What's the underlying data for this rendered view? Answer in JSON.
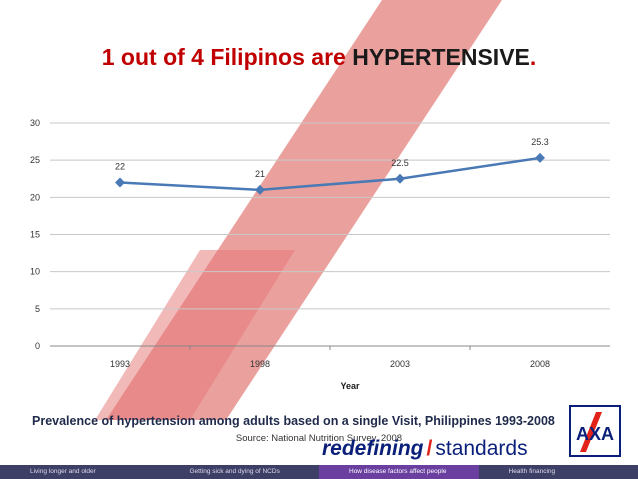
{
  "slide": {
    "title_part1": "1 out of 4 Filipinos are ",
    "title_part2": "HYPERTENSIVE",
    "title_period": ".",
    "caption": "Prevalence of hypertension among adults based on a single Visit, Philippines 1993-2008",
    "source": "Source: National Nutrition Survey, 2008",
    "brand": {
      "word1": "redefining",
      "slash": "/",
      "word2": "standards"
    },
    "logo_text": "AXA",
    "colors": {
      "title_red": "#c00000",
      "line": "#4a7ab5",
      "stripe": "#d9534f",
      "footer_active": "#6a3fa0",
      "footer": "#3e3f66",
      "brand_blue": "#0a1f7a"
    }
  },
  "footer": {
    "items": [
      {
        "label": "Living longer and older"
      },
      {
        "label": "Getting sick and dying of NCDs"
      },
      {
        "label": "How disease factors affect people"
      },
      {
        "label": "Health financing"
      }
    ]
  },
  "chart_data": {
    "type": "line",
    "categories": [
      "1993",
      "1998",
      "2003",
      "2008"
    ],
    "values": [
      22,
      21,
      22.5,
      25.3
    ],
    "data_labels": [
      "22",
      "21",
      "22.5",
      "25.3"
    ],
    "xlabel": "Year",
    "ylabel": "",
    "ylim": [
      0,
      30
    ],
    "yticks": [
      0,
      5,
      10,
      15,
      20,
      25,
      30
    ],
    "grid": true,
    "marker": "diamond"
  }
}
